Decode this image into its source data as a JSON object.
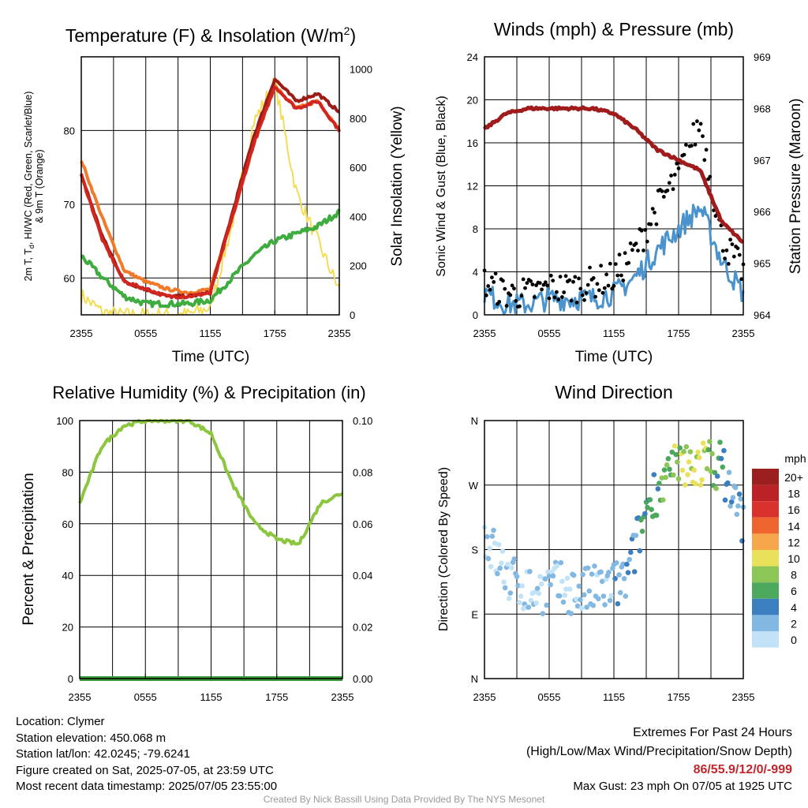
{
  "panels": {
    "temperature": {
      "title": "Temperature (F) & Insolation (W/m",
      "title_sup": "2",
      "title_end": ")",
      "ylabel_lines": [
        "2m T, T",
        "d",
        ", HI/WC (Red, Green, Scarlet/Blue)",
        "& 9m T (Orange)"
      ],
      "y2label": "Solar Insolation (Yellow)",
      "xlabel": "Time (UTC)",
      "ticks_x": [
        "2355",
        "0555",
        "1155",
        "1755",
        "2355"
      ],
      "ticks_y": [
        "60",
        "70",
        "80"
      ],
      "ticks_y2": [
        "0",
        "200",
        "400",
        "600",
        "800",
        "1000"
      ]
    },
    "wind": {
      "title": "Winds (mph) & Pressure (mb)",
      "ylabel": "Sonic Wind & Gust (Blue, Black)",
      "y2label": "Station Pressure (Maroon)",
      "xlabel": "Time (UTC)",
      "ticks_x": [
        "2355",
        "0555",
        "1155",
        "1755",
        "2355"
      ],
      "ticks_y": [
        "0",
        "4",
        "8",
        "12",
        "16",
        "20",
        "24"
      ],
      "ticks_y2": [
        "964",
        "965",
        "966",
        "967",
        "968",
        "969"
      ]
    },
    "humidity": {
      "title": "Relative Humidity (%) & Precipitation (in)",
      "ylabel": "Percent & Precipitation",
      "ticks_x": [
        "2355",
        "0555",
        "1155",
        "1755",
        "2355"
      ],
      "ticks_y": [
        "0",
        "20",
        "40",
        "60",
        "80",
        "100"
      ],
      "ticks_y2": [
        "0.00",
        "0.02",
        "0.04",
        "0.06",
        "0.08",
        "0.10"
      ]
    },
    "direction": {
      "title": "Wind Direction",
      "ylabel": "Direction (Colored By Speed)",
      "ticks_x": [
        "2355",
        "0555",
        "1155",
        "1755",
        "2355"
      ],
      "ticks_y": [
        "N",
        "E",
        "S",
        "W",
        "N"
      ],
      "legend_title": "mph",
      "legend_labels": [
        "20+",
        "18",
        "16",
        "14",
        "12",
        "10",
        "8",
        "6",
        "4",
        "2",
        "0"
      ]
    }
  },
  "colors": {
    "temp_red": "#d0261f",
    "temp_scarlet": "#9b1b16",
    "dewpoint_green": "#3fac3f",
    "temp_9m_orange": "#f07a2a",
    "insolation_yellow": "#f5dc55",
    "wind_blue": "#4a93cc",
    "gust_black": "#000000",
    "pressure_maroon": "#a01c1c",
    "humidity_green": "#8cc63f",
    "precip_green": "#3a9a3a",
    "legend_scale": [
      "#9c1f1f",
      "#bb2226",
      "#d9312b",
      "#ee6530",
      "#f6a74b",
      "#eae15b",
      "#8cc656",
      "#4ca85c",
      "#3b7fc0",
      "#82b8e2",
      "#c2e3f7"
    ]
  },
  "chart_data": [
    {
      "type": "line",
      "title": "Temperature (F) & Insolation (W/m2)",
      "xlabel": "Time (UTC)",
      "ylabel": "2m T, Td, HI/WC (Red, Green, Scarlet/Blue) & 9m T (Orange)",
      "y2label": "Solar Insolation (Yellow)",
      "x": [
        "2355",
        "0155",
        "0355",
        "0555",
        "0755",
        "0955",
        "1155",
        "1355",
        "1555",
        "1755",
        "1955",
        "2155",
        "2355"
      ],
      "ylim": [
        55,
        90
      ],
      "y2lim": [
        0,
        1050
      ],
      "series": [
        {
          "name": "2m T",
          "axis": "left",
          "values": [
            74,
            65,
            59.5,
            58.5,
            57.5,
            57.5,
            58,
            68,
            78,
            86,
            83,
            84,
            80
          ]
        },
        {
          "name": "HI/WC",
          "axis": "left",
          "values": [
            74,
            65.5,
            59.5,
            58.5,
            57.5,
            57.5,
            58,
            68.5,
            79,
            87,
            84,
            85,
            82.5
          ]
        },
        {
          "name": "Td",
          "axis": "left",
          "values": [
            63,
            60,
            57.5,
            56.5,
            56.5,
            56.5,
            57,
            60,
            63,
            65,
            66,
            67,
            69
          ]
        },
        {
          "name": "9m T",
          "axis": "left",
          "values": [
            76,
            68,
            61,
            59.5,
            58.5,
            58,
            58.5,
            68,
            78,
            86,
            83,
            84,
            80
          ]
        },
        {
          "name": "Solar Insolation",
          "axis": "right",
          "values": [
            80,
            10,
            0,
            0,
            0,
            2,
            30,
            360,
            780,
            950,
            500,
            300,
            100
          ]
        }
      ]
    },
    {
      "type": "line",
      "title": "Winds (mph) & Pressure (mb)",
      "xlabel": "Time (UTC)",
      "ylabel": "Sonic Wind & Gust (Blue, Black)",
      "y2label": "Station Pressure (Maroon)",
      "x": [
        "2355",
        "0155",
        "0355",
        "0555",
        "0755",
        "0955",
        "1155",
        "1355",
        "1555",
        "1755",
        "1955",
        "2155",
        "2355"
      ],
      "ylim": [
        0,
        24
      ],
      "y2lim": [
        964,
        969
      ],
      "series": [
        {
          "name": "Sonic Wind",
          "axis": "left",
          "values": [
            2,
            1,
            1,
            1.5,
            1.5,
            1.5,
            2,
            3.5,
            6,
            8,
            10,
            5,
            2
          ]
        },
        {
          "name": "Gust",
          "axis": "left",
          "values": [
            3,
            2,
            2,
            2.5,
            2.5,
            3,
            3.5,
            6,
            10,
            13,
            18,
            7,
            4
          ]
        },
        {
          "name": "Station Pressure",
          "axis": "right",
          "values": [
            967.6,
            967.9,
            968.0,
            968.0,
            968.0,
            968.0,
            967.9,
            967.6,
            967.2,
            967.0,
            966.8,
            965.8,
            965.4
          ]
        }
      ]
    },
    {
      "type": "line",
      "title": "Relative Humidity (%) & Precipitation (in)",
      "ylabel": "Percent & Precipitation",
      "x": [
        "2355",
        "0155",
        "0355",
        "0555",
        "0755",
        "0955",
        "1155",
        "1355",
        "1555",
        "1755",
        "1955",
        "2155",
        "2355"
      ],
      "ylim": [
        0,
        100
      ],
      "y2lim": [
        0,
        0.1
      ],
      "series": [
        {
          "name": "Relative Humidity",
          "axis": "left",
          "values": [
            68,
            90,
            98,
            100,
            100,
            100,
            95,
            75,
            60,
            54,
            52,
            68,
            72
          ]
        },
        {
          "name": "Precipitation",
          "axis": "right",
          "values": [
            0,
            0,
            0,
            0,
            0,
            0,
            0,
            0,
            0,
            0,
            0,
            0,
            0
          ]
        }
      ]
    },
    {
      "type": "scatter",
      "title": "Wind Direction",
      "ylabel": "Direction (Colored By Speed)",
      "x": [
        "0055",
        "0255",
        "0455",
        "0655",
        "0855",
        "1055",
        "1255",
        "1455",
        "1655",
        "1855",
        "2055",
        "2255"
      ],
      "y_categories": [
        "N",
        "E",
        "S",
        "W",
        "N"
      ],
      "ylim": [
        0,
        360
      ],
      "series": [
        {
          "name": "Direction",
          "values": [
            200,
            140,
            120,
            130,
            120,
            125,
            135,
            250,
            290,
            300,
            300,
            220
          ]
        }
      ]
    }
  ],
  "footer": {
    "location": "Location: Clymer",
    "elevation": "Station elevation: 450.068 m",
    "latlon": "Station lat/lon: 42.0245; -79.6241",
    "created": "Figure created on Sat, 2025-07-05, at 23:59 UTC",
    "recent": "Most recent data timestamp: 2025/07/05 23:55:00",
    "extremes_title": "Extremes For Past 24 Hours",
    "extremes_subtitle": "(High/Low/Max Wind/Precipitation/Snow Depth)",
    "extremes_values": "86/55.9/12/0/-999",
    "max_gust": "Max Gust: 23 mph On 07/05 at 1925 UTC",
    "credit": "Created By Nick Bassill Using Data Provided By The NYS Mesonet"
  }
}
